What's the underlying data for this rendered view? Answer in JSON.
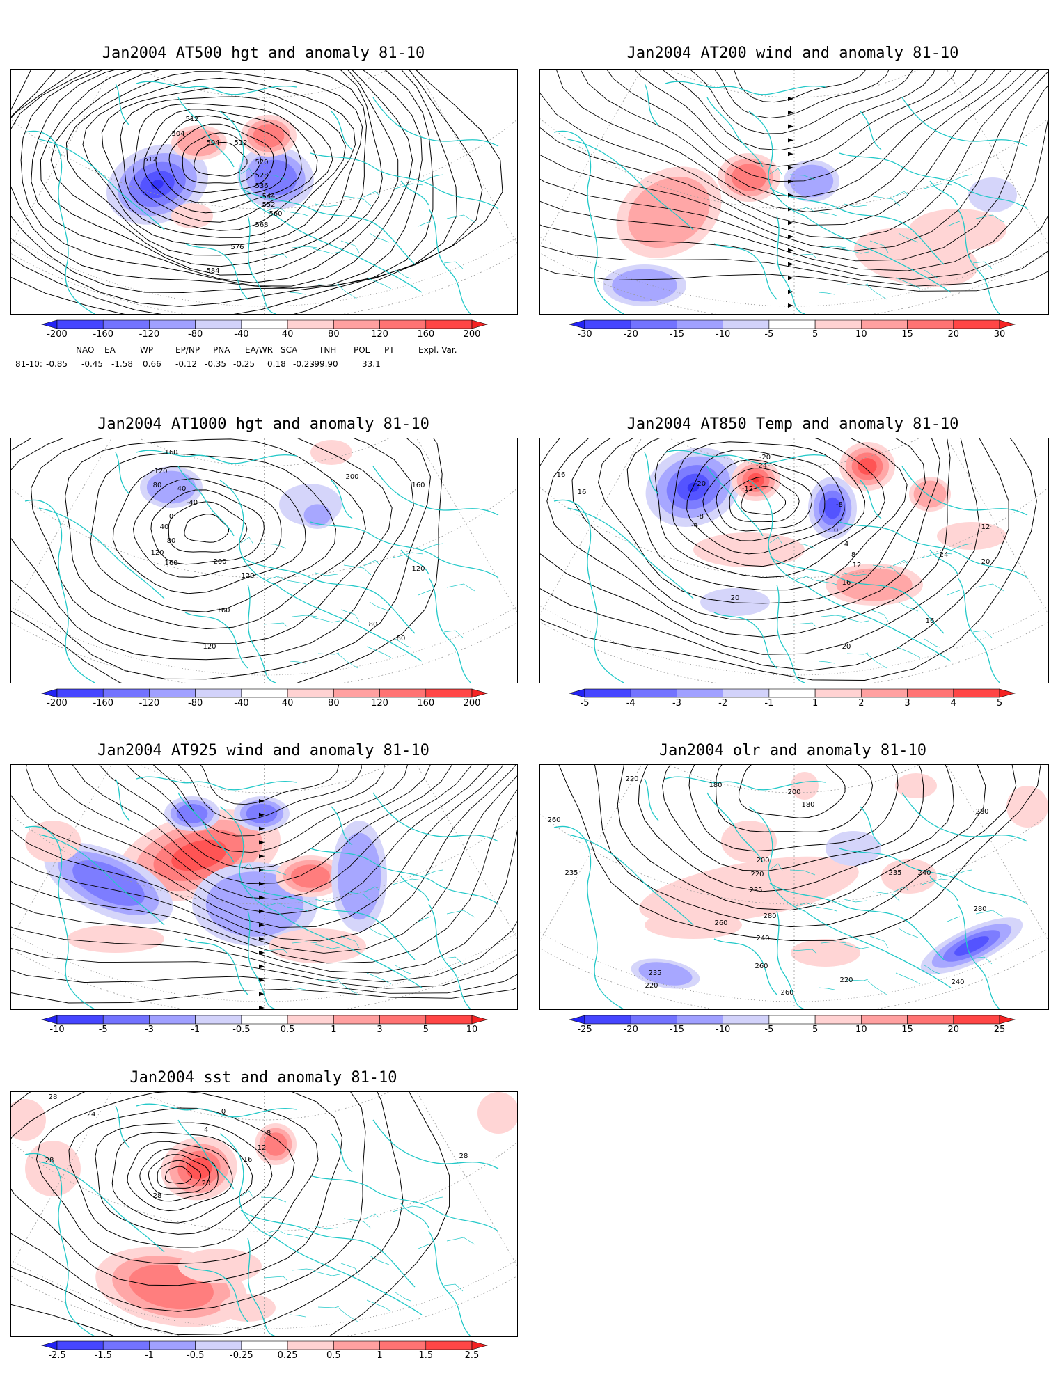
{
  "panels": [
    {
      "id": "p1",
      "title": "Jan2004 AT500 hgt and anomaly 81-10",
      "colorbar": [
        "-200",
        "-160",
        "-120",
        "-80",
        "-40",
        "40",
        "80",
        "120",
        "160",
        "200"
      ],
      "contour_labels": [
        "504",
        "512",
        "504",
        "512",
        "512",
        "520",
        "528",
        "536",
        "544",
        "552",
        "560",
        "568",
        "576",
        "584"
      ]
    },
    {
      "id": "p2",
      "title": "Jan2004 AT200 wind and anomaly 81-10",
      "colorbar": [
        "-30",
        "-20",
        "-15",
        "-10",
        "-5",
        "5",
        "10",
        "15",
        "20",
        "30"
      ],
      "contour_labels": []
    },
    {
      "id": "p3",
      "title": "Jan2004 AT1000 hgt and anomaly 81-10",
      "colorbar": [
        "-200",
        "-160",
        "-120",
        "-80",
        "-40",
        "40",
        "80",
        "120",
        "160",
        "200"
      ],
      "contour_labels": [
        "160",
        "120",
        "80",
        "40",
        "-40",
        "0",
        "40",
        "80",
        "120",
        "160",
        "200",
        "200",
        "160",
        "120",
        "120",
        "80",
        "80",
        "160",
        "120"
      ]
    },
    {
      "id": "p4",
      "title": "Jan2004 AT850 Temp and anomaly 81-10",
      "colorbar": [
        "-5",
        "-4",
        "-3",
        "-2",
        "-1",
        "1",
        "2",
        "3",
        "4",
        "5"
      ],
      "contour_labels": [
        "16",
        "16",
        "-20",
        "-12",
        "-24",
        "-20",
        "-8",
        "-4",
        "-8",
        "0",
        "4",
        "8",
        "12",
        "16",
        "20",
        "24",
        "12",
        "20",
        "16",
        "20"
      ]
    },
    {
      "id": "p5",
      "title": "Jan2004 AT925 wind and anomaly 81-10",
      "colorbar": [
        "-10",
        "-5",
        "-3",
        "-1",
        "-0.5",
        "0.5",
        "1",
        "3",
        "5",
        "10"
      ],
      "contour_labels": []
    },
    {
      "id": "p6",
      "title": "Jan2004 olr and anomaly 81-10",
      "colorbar": [
        "-25",
        "-20",
        "-15",
        "-10",
        "-5",
        "5",
        "10",
        "15",
        "20",
        "25"
      ],
      "contour_labels": [
        "260",
        "235",
        "220",
        "180",
        "200",
        "180",
        "280",
        "235",
        "240",
        "280",
        "200",
        "220",
        "235",
        "260",
        "280",
        "240",
        "260",
        "220",
        "235",
        "220",
        "240",
        "260"
      ]
    },
    {
      "id": "p7",
      "title": "Jan2004 sst and anomaly 81-10",
      "colorbar": [
        "-2.5",
        "-1.5",
        "-1",
        "-0.5",
        "-0.25",
        "0.25",
        "0.5",
        "1",
        "1.5",
        "2.5"
      ],
      "contour_labels": [
        "28",
        "24",
        "28",
        "4",
        "0",
        "8",
        "12",
        "16",
        "20",
        "28",
        "28"
      ]
    }
  ],
  "indices": {
    "headers": [
      "NAO",
      "EA",
      "WP",
      "EP/NP",
      "PNA",
      "EA/WR",
      "SCA",
      "TNH",
      "POL",
      "PT",
      "Expl. Var."
    ],
    "row_label": "81-10:",
    "values": [
      "-0.85",
      "-0.45",
      "-1.58",
      "0.66",
      "-0.12",
      "-0.35",
      "-0.25",
      "0.18",
      "-0.23",
      "-99.90",
      "33.1"
    ]
  },
  "colors": {
    "coast": "#22c8c8",
    "neg_dark": "#2a2aff",
    "pos_dark": "#ff2a2a",
    "contour": "#000000"
  }
}
